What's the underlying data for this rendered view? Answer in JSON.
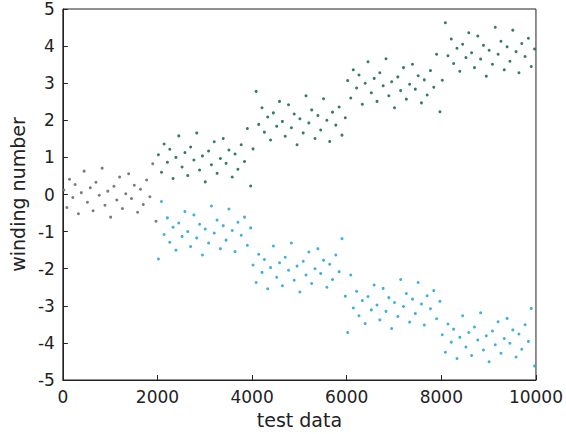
{
  "chart_data": {
    "type": "scatter",
    "x_label": "test data",
    "y_label": "winding number",
    "xlim": [
      0,
      10000
    ],
    "xticks": [
      0,
      2000,
      4000,
      6000,
      8000,
      10000
    ],
    "ylim": [
      -5,
      5
    ],
    "yticks": [
      -5,
      -4,
      -3,
      -2,
      -1,
      0,
      1,
      2,
      3,
      4,
      5
    ],
    "grid": false,
    "marker": "circle",
    "series": [
      {
        "color": "#6e6e6e",
        "x": [
          20,
          85,
          140,
          210,
          260,
          330,
          390,
          450,
          520,
          580,
          640,
          700,
          770,
          830,
          890,
          950,
          1010,
          1080,
          1140,
          1200,
          1260,
          1330,
          1390,
          1450,
          1510,
          1580,
          1640,
          1700,
          1770,
          1840,
          1900,
          1970
        ],
        "values": [
          0.12,
          -0.35,
          0.41,
          -0.08,
          0.27,
          -0.52,
          0.05,
          0.63,
          -0.21,
          0.18,
          -0.44,
          0.33,
          -0.02,
          0.71,
          -0.29,
          0.09,
          -0.61,
          0.22,
          -0.15,
          0.47,
          -0.38,
          0.02,
          0.56,
          -0.11,
          0.25,
          -0.48,
          0.14,
          -0.27,
          0.39,
          -0.06,
          0.83,
          -0.72
        ]
      },
      {
        "color": "#1d6b5f",
        "x": [
          2020,
          2085,
          2140,
          2210,
          2260,
          2330,
          2390,
          2450,
          2520,
          2580,
          2640,
          2700,
          2770,
          2830,
          2890,
          2950,
          3010,
          3080,
          3140,
          3200,
          3260,
          3330,
          3390,
          3450,
          3510,
          3580,
          3640,
          3700,
          3770,
          3840,
          3900,
          3970,
          4020,
          4085,
          4140,
          4210,
          4260,
          4330,
          4390,
          4450,
          4520,
          4580,
          4640,
          4700,
          4770,
          4830,
          4890,
          4950,
          5010,
          5080,
          5140,
          5200,
          5260,
          5330,
          5390,
          5450,
          5510,
          5580,
          5640,
          5700,
          5770,
          5840,
          5900,
          5970,
          6020,
          6085,
          6140,
          6210,
          6260,
          6330,
          6390,
          6450,
          6520,
          6580,
          6640,
          6700,
          6770,
          6830,
          6890,
          6950,
          7010,
          7080,
          7140,
          7200,
          7260,
          7330,
          7390,
          7450,
          7510,
          7580,
          7640,
          7700,
          7770,
          7840,
          7900,
          7970,
          8020,
          8085,
          8140,
          8210,
          8260,
          8330,
          8390,
          8450,
          8520,
          8580,
          8640,
          8700,
          8770,
          8830,
          8890,
          8950,
          9010,
          9080,
          9140,
          9200,
          9260,
          9330,
          9390,
          9450,
          9510,
          9580,
          9640,
          9700,
          9770,
          9840,
          9900,
          9970
        ],
        "values": [
          1.07,
          0.6,
          1.36,
          0.87,
          1.22,
          0.43,
          1.0,
          1.58,
          0.74,
          1.13,
          0.51,
          1.28,
          0.93,
          1.66,
          0.66,
          1.04,
          0.34,
          1.17,
          0.8,
          1.42,
          0.57,
          0.97,
          1.51,
          0.84,
          1.2,
          0.47,
          1.09,
          0.68,
          1.34,
          0.89,
          1.78,
          0.23,
          1.23,
          2.78,
          1.89,
          2.34,
          1.68,
          2.09,
          1.47,
          2.2,
          1.84,
          2.51,
          1.97,
          1.57,
          2.42,
          1.8,
          2.17,
          1.34,
          2.04,
          1.66,
          2.66,
          1.93,
          2.28,
          1.51,
          2.13,
          1.74,
          2.58,
          2.0,
          1.43,
          2.22,
          1.87,
          2.36,
          1.6,
          2.07,
          3.07,
          2.6,
          3.36,
          2.87,
          3.22,
          2.43,
          3.0,
          3.58,
          2.74,
          3.13,
          2.51,
          3.28,
          2.93,
          3.66,
          2.66,
          3.04,
          2.34,
          3.17,
          2.8,
          3.42,
          2.57,
          2.97,
          3.51,
          2.84,
          3.2,
          2.47,
          3.09,
          2.68,
          3.34,
          2.89,
          3.78,
          2.23,
          3.08,
          4.63,
          3.74,
          4.19,
          3.53,
          3.94,
          3.32,
          4.05,
          3.69,
          4.36,
          3.82,
          3.42,
          4.27,
          3.65,
          4.02,
          3.19,
          3.89,
          3.51,
          4.51,
          3.78,
          4.13,
          3.36,
          3.98,
          3.59,
          4.43,
          3.85,
          3.28,
          4.07,
          3.72,
          4.21,
          3.45,
          3.92
        ]
      },
      {
        "color": "#2aa8d8",
        "x": [
          2020,
          2085,
          2140,
          2210,
          2260,
          2330,
          2390,
          2450,
          2520,
          2580,
          2640,
          2700,
          2770,
          2830,
          2890,
          2950,
          3010,
          3080,
          3140,
          3200,
          3260,
          3330,
          3390,
          3450,
          3510,
          3580,
          3640,
          3700,
          3770,
          3840,
          3900,
          3970,
          4020,
          4085,
          4140,
          4210,
          4260,
          4330,
          4390,
          4450,
          4520,
          4580,
          4640,
          4700,
          4770,
          4830,
          4890,
          4950,
          5010,
          5080,
          5140,
          5200,
          5260,
          5330,
          5390,
          5450,
          5510,
          5580,
          5640,
          5700,
          5770,
          5840,
          5900,
          5970,
          6020,
          6085,
          6140,
          6210,
          6260,
          6330,
          6390,
          6450,
          6520,
          6580,
          6640,
          6700,
          6770,
          6830,
          6890,
          6950,
          7010,
          7080,
          7140,
          7200,
          7260,
          7330,
          7390,
          7450,
          7510,
          7580,
          7640,
          7700,
          7770,
          7840,
          7900,
          7970,
          8020,
          8085,
          8140,
          8210,
          8260,
          8330,
          8390,
          8450,
          8520,
          8580,
          8640,
          8700,
          8770,
          8830,
          8890,
          8950,
          9010,
          9080,
          9140,
          9200,
          9260,
          9330,
          9390,
          9450,
          9510,
          9580,
          9640,
          9700,
          9770,
          9840,
          9900,
          9970
        ],
        "values": [
          -1.74,
          -0.19,
          -1.08,
          -0.63,
          -1.29,
          -0.88,
          -1.5,
          -0.77,
          -1.13,
          -0.46,
          -1.0,
          -1.4,
          -0.55,
          -1.17,
          -0.8,
          -1.63,
          -0.93,
          -1.31,
          -0.31,
          -1.04,
          -0.69,
          -1.46,
          -0.84,
          -1.23,
          -0.39,
          -0.97,
          -1.54,
          -0.75,
          -1.1,
          -0.61,
          -1.37,
          -0.9,
          -1.9,
          -2.37,
          -1.61,
          -2.1,
          -1.75,
          -2.54,
          -1.97,
          -1.39,
          -2.23,
          -1.84,
          -2.46,
          -1.69,
          -2.04,
          -1.31,
          -2.31,
          -1.93,
          -2.63,
          -1.8,
          -2.17,
          -1.55,
          -2.4,
          -2.0,
          -1.46,
          -2.13,
          -1.77,
          -2.5,
          -1.88,
          -2.29,
          -1.63,
          -2.08,
          -1.19,
          -2.74,
          -3.72,
          -2.17,
          -3.06,
          -2.61,
          -3.27,
          -2.86,
          -3.48,
          -2.75,
          -3.11,
          -2.44,
          -2.98,
          -3.38,
          -2.53,
          -3.15,
          -2.78,
          -3.61,
          -2.91,
          -3.29,
          -2.29,
          -3.02,
          -2.67,
          -3.44,
          -2.82,
          -3.21,
          -2.37,
          -2.95,
          -3.52,
          -2.73,
          -3.08,
          -2.59,
          -3.35,
          -2.88,
          -3.78,
          -4.25,
          -3.49,
          -3.98,
          -3.63,
          -4.42,
          -3.85,
          -3.27,
          -4.11,
          -3.72,
          -4.34,
          -3.57,
          -3.92,
          -3.19,
          -4.19,
          -3.81,
          -4.51,
          -3.68,
          -4.05,
          -3.43,
          -4.28,
          -3.88,
          -3.34,
          -4.01,
          -3.65,
          -4.38,
          -3.76,
          -4.17,
          -3.51,
          -3.96,
          -3.07,
          -4.62
        ]
      }
    ]
  }
}
